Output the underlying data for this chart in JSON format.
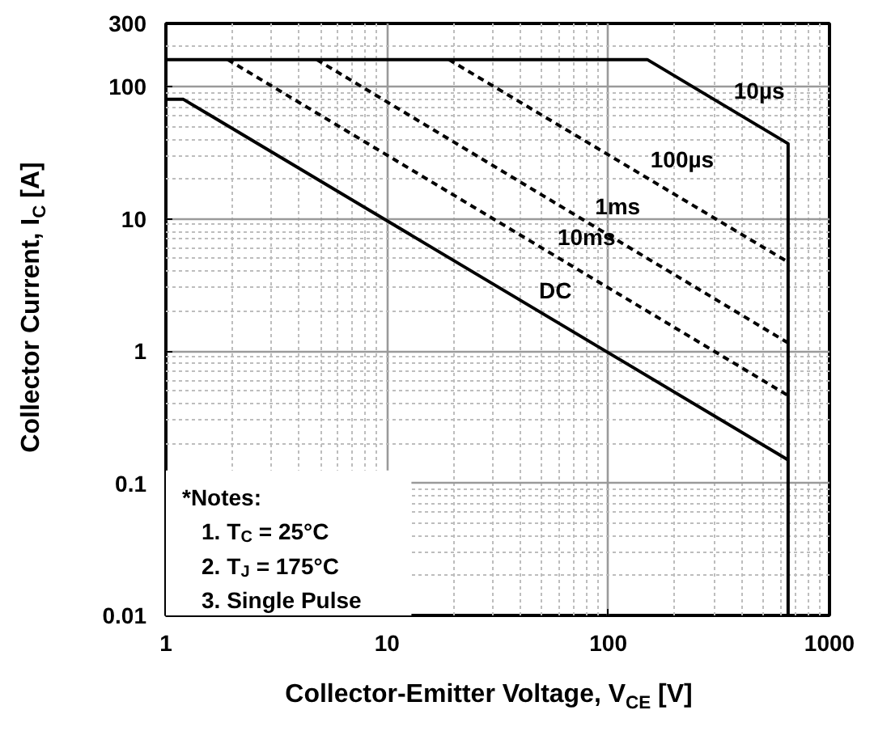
{
  "chart_data": {
    "type": "line",
    "xlabel": "Collector-Emitter Voltage, V$_{CE}$ [V]",
    "ylabel": "Collector Current, I$_{C}$ [A]",
    "log": "xy",
    "grid": true,
    "legend": false,
    "xlim": [
      1,
      1000
    ],
    "xticks": [
      1,
      10,
      100,
      1000
    ],
    "ylim": [
      0.01,
      300
    ],
    "yticks": [
      0.01,
      0.1,
      1,
      10,
      100,
      300
    ],
    "series": [
      {
        "name": "10µs",
        "color": "#000000",
        "line_style": "solid",
        "x": [
          1,
          150,
          650,
          650
        ],
        "values": [
          160,
          160,
          37,
          0.01
        ]
      },
      {
        "name": "100µs",
        "color": "#000000",
        "line_style": "dashed",
        "x": [
          19,
          650
        ],
        "values": [
          160,
          4.7
        ]
      },
      {
        "name": "1ms",
        "color": "#000000",
        "line_style": "dashed",
        "x": [
          4.8,
          650
        ],
        "values": [
          160,
          1.15
        ]
      },
      {
        "name": "10ms",
        "color": "#000000",
        "line_style": "dashed",
        "x": [
          1.9,
          650
        ],
        "values": [
          160,
          0.46
        ]
      },
      {
        "name": "DC",
        "color": "#000000",
        "line_style": "solid",
        "x": [
          1,
          1.2,
          650
        ],
        "values": [
          80,
          80,
          0.15
        ]
      }
    ],
    "annotations": [
      "*Notes:",
      "1. T$_{C}$ = 25°C",
      "2. T$_{J}$ = 175°C",
      "3. Single Pulse"
    ]
  }
}
